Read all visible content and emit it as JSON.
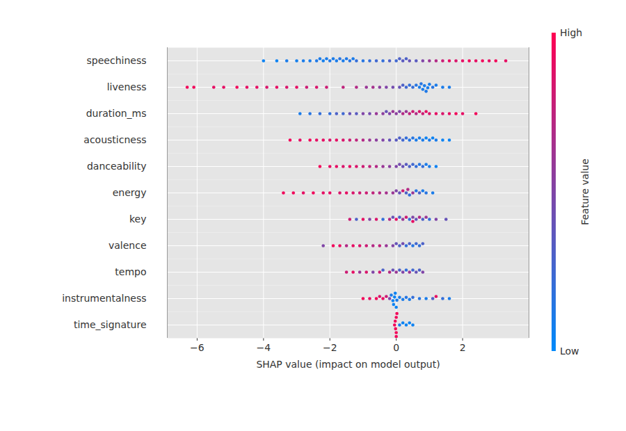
{
  "chart_data": {
    "type": "beeswarm",
    "x_label": "SHAP value (impact on model output)",
    "xlim": [
      -6.9,
      4.0
    ],
    "xticks": [
      -6,
      -4,
      -2,
      0,
      2
    ],
    "grid": true,
    "colorbar": {
      "label": "Feature value",
      "range": [
        0,
        1
      ],
      "colors": [
        "#008afb",
        "#ff0052"
      ],
      "ticks": [
        {
          "value": 0,
          "label": "Low"
        },
        {
          "value": 1,
          "label": "High"
        }
      ]
    },
    "features": [
      {
        "name": "speechiness",
        "points": [
          [
            -4.0,
            0.05
          ],
          [
            -3.6,
            0.05
          ],
          [
            -3.3,
            0.1
          ],
          [
            -3.0,
            0.08
          ],
          [
            -2.8,
            0.1
          ],
          [
            -2.6,
            0.1
          ],
          [
            -2.4,
            0.12
          ],
          [
            -2.3,
            0.1
          ],
          [
            -2.2,
            0.08
          ],
          [
            -2.1,
            0.1
          ],
          [
            -2.0,
            0.12
          ],
          [
            -1.9,
            0.1
          ],
          [
            -1.8,
            0.1
          ],
          [
            -1.7,
            0.15
          ],
          [
            -1.6,
            0.1
          ],
          [
            -1.5,
            0.12
          ],
          [
            -1.4,
            0.15
          ],
          [
            -1.3,
            0.1
          ],
          [
            -1.2,
            0.2
          ],
          [
            -1.0,
            0.15
          ],
          [
            -0.8,
            0.2
          ],
          [
            -0.6,
            0.25
          ],
          [
            -0.4,
            0.2
          ],
          [
            -0.2,
            0.3
          ],
          [
            0.0,
            0.25
          ],
          [
            0.1,
            0.3
          ],
          [
            0.2,
            0.35
          ],
          [
            0.3,
            0.3
          ],
          [
            0.4,
            0.4
          ],
          [
            0.6,
            0.35
          ],
          [
            0.8,
            0.5
          ],
          [
            1.0,
            0.6
          ],
          [
            1.2,
            0.7
          ],
          [
            1.4,
            0.8
          ],
          [
            1.6,
            0.9
          ],
          [
            1.8,
            0.85
          ],
          [
            2.0,
            0.9
          ],
          [
            2.2,
            0.95
          ],
          [
            2.4,
            0.9
          ],
          [
            2.6,
            0.95
          ],
          [
            2.8,
            0.9
          ],
          [
            3.0,
            0.95
          ],
          [
            3.3,
            0.9
          ]
        ]
      },
      {
        "name": "liveness",
        "points": [
          [
            -6.3,
            0.95
          ],
          [
            -6.1,
            0.95
          ],
          [
            -5.5,
            0.9
          ],
          [
            -5.2,
            0.9
          ],
          [
            -4.8,
            0.95
          ],
          [
            -4.5,
            0.9
          ],
          [
            -4.2,
            0.9
          ],
          [
            -3.9,
            0.85
          ],
          [
            -3.6,
            0.9
          ],
          [
            -3.3,
            0.85
          ],
          [
            -3.0,
            0.9
          ],
          [
            -2.7,
            0.8
          ],
          [
            -2.4,
            0.85
          ],
          [
            -2.1,
            0.8
          ],
          [
            -1.6,
            0.75
          ],
          [
            -1.2,
            0.7
          ],
          [
            -0.9,
            0.6
          ],
          [
            -0.7,
            0.65
          ],
          [
            -0.5,
            0.55
          ],
          [
            -0.3,
            0.5
          ],
          [
            -0.1,
            0.45
          ],
          [
            0.1,
            0.4
          ],
          [
            0.2,
            0.3
          ],
          [
            0.3,
            0.25
          ],
          [
            0.4,
            0.2
          ],
          [
            0.5,
            0.2
          ],
          [
            0.6,
            0.15
          ],
          [
            0.7,
            0.1
          ],
          [
            0.75,
            0.15
          ],
          [
            0.8,
            0.1
          ],
          [
            0.85,
            0.1
          ],
          [
            0.9,
            0.12
          ],
          [
            0.95,
            0.1
          ],
          [
            1.0,
            0.1
          ],
          [
            1.1,
            0.15
          ],
          [
            1.2,
            0.1
          ],
          [
            1.4,
            0.1
          ],
          [
            1.6,
            0.1
          ]
        ]
      },
      {
        "name": "duration_ms",
        "points": [
          [
            -2.9,
            0.1
          ],
          [
            -2.6,
            0.15
          ],
          [
            -2.3,
            0.2
          ],
          [
            -2.0,
            0.2
          ],
          [
            -1.8,
            0.3
          ],
          [
            -1.6,
            0.25
          ],
          [
            -1.4,
            0.4
          ],
          [
            -1.2,
            0.35
          ],
          [
            -1.0,
            0.5
          ],
          [
            -0.8,
            0.45
          ],
          [
            -0.6,
            0.6
          ],
          [
            -0.4,
            0.55
          ],
          [
            -0.3,
            0.4
          ],
          [
            -0.2,
            0.5
          ],
          [
            -0.1,
            0.6
          ],
          [
            0.0,
            0.55
          ],
          [
            0.1,
            0.5
          ],
          [
            0.2,
            0.7
          ],
          [
            0.3,
            0.6
          ],
          [
            0.4,
            0.75
          ],
          [
            0.5,
            0.8
          ],
          [
            0.6,
            0.7
          ],
          [
            0.7,
            0.85
          ],
          [
            0.8,
            0.8
          ],
          [
            0.9,
            0.9
          ],
          [
            1.0,
            0.85
          ],
          [
            1.2,
            0.9
          ],
          [
            1.4,
            0.85
          ],
          [
            1.6,
            0.9
          ],
          [
            1.8,
            0.95
          ],
          [
            2.0,
            0.9
          ],
          [
            2.4,
            0.95
          ]
        ]
      },
      {
        "name": "acousticness",
        "points": [
          [
            -3.2,
            0.95
          ],
          [
            -2.9,
            0.9
          ],
          [
            -2.6,
            0.95
          ],
          [
            -2.4,
            0.9
          ],
          [
            -2.2,
            0.9
          ],
          [
            -2.0,
            0.85
          ],
          [
            -1.8,
            0.9
          ],
          [
            -1.6,
            0.85
          ],
          [
            -1.4,
            0.8
          ],
          [
            -1.2,
            0.75
          ],
          [
            -1.0,
            0.7
          ],
          [
            -0.8,
            0.6
          ],
          [
            -0.6,
            0.55
          ],
          [
            -0.4,
            0.5
          ],
          [
            -0.2,
            0.4
          ],
          [
            0.0,
            0.35
          ],
          [
            0.1,
            0.3
          ],
          [
            0.2,
            0.25
          ],
          [
            0.3,
            0.2
          ],
          [
            0.4,
            0.15
          ],
          [
            0.5,
            0.15
          ],
          [
            0.6,
            0.1
          ],
          [
            0.7,
            0.1
          ],
          [
            0.8,
            0.1
          ],
          [
            0.9,
            0.05
          ],
          [
            1.0,
            0.1
          ],
          [
            1.1,
            0.05
          ],
          [
            1.2,
            0.1
          ],
          [
            1.4,
            0.05
          ],
          [
            1.6,
            0.05
          ]
        ]
      },
      {
        "name": "danceability",
        "points": [
          [
            -2.3,
            0.95
          ],
          [
            -2.0,
            0.9
          ],
          [
            -1.8,
            0.9
          ],
          [
            -1.6,
            0.85
          ],
          [
            -1.4,
            0.9
          ],
          [
            -1.2,
            0.85
          ],
          [
            -1.0,
            0.8
          ],
          [
            -0.8,
            0.75
          ],
          [
            -0.6,
            0.7
          ],
          [
            -0.4,
            0.6
          ],
          [
            -0.2,
            0.55
          ],
          [
            0.0,
            0.5
          ],
          [
            0.1,
            0.45
          ],
          [
            0.2,
            0.4
          ],
          [
            0.3,
            0.35
          ],
          [
            0.4,
            0.3
          ],
          [
            0.5,
            0.25
          ],
          [
            0.6,
            0.2
          ],
          [
            0.7,
            0.15
          ],
          [
            0.8,
            0.2
          ],
          [
            0.9,
            0.1
          ],
          [
            1.0,
            0.1
          ],
          [
            1.2,
            0.05
          ]
        ]
      },
      {
        "name": "energy",
        "points": [
          [
            -3.4,
            0.95
          ],
          [
            -3.1,
            0.95
          ],
          [
            -2.8,
            0.9
          ],
          [
            -2.5,
            0.95
          ],
          [
            -2.2,
            0.9
          ],
          [
            -2.0,
            0.9
          ],
          [
            -1.7,
            0.85
          ],
          [
            -1.5,
            0.9
          ],
          [
            -1.3,
            0.85
          ],
          [
            -1.1,
            0.8
          ],
          [
            -0.9,
            0.8
          ],
          [
            -0.7,
            0.75
          ],
          [
            -0.5,
            0.7
          ],
          [
            -0.3,
            0.65
          ],
          [
            -0.1,
            0.6
          ],
          [
            0.0,
            0.5
          ],
          [
            0.1,
            0.4
          ],
          [
            0.2,
            0.8
          ],
          [
            0.3,
            0.3
          ],
          [
            0.35,
            0.7
          ],
          [
            0.4,
            0.2
          ],
          [
            0.5,
            0.6
          ],
          [
            0.6,
            0.15
          ],
          [
            0.7,
            0.3
          ],
          [
            0.8,
            0.1
          ],
          [
            0.9,
            0.15
          ],
          [
            1.1,
            0.1
          ]
        ]
      },
      {
        "name": "key",
        "points": [
          [
            -1.4,
            0.8
          ],
          [
            -1.2,
            0.3
          ],
          [
            -1.0,
            0.9
          ],
          [
            -0.8,
            0.5
          ],
          [
            -0.6,
            0.85
          ],
          [
            -0.4,
            0.2
          ],
          [
            -0.2,
            0.7
          ],
          [
            -0.1,
            0.4
          ],
          [
            0.0,
            0.9
          ],
          [
            0.1,
            0.3
          ],
          [
            0.2,
            0.6
          ],
          [
            0.3,
            0.8
          ],
          [
            0.4,
            0.2
          ],
          [
            0.5,
            0.5
          ],
          [
            0.5,
            0.9
          ],
          [
            0.6,
            0.4
          ],
          [
            0.7,
            0.7
          ],
          [
            0.8,
            0.3
          ],
          [
            0.9,
            0.6
          ],
          [
            1.0,
            0.2
          ],
          [
            1.2,
            0.5
          ],
          [
            1.5,
            0.4
          ]
        ]
      },
      {
        "name": "valence",
        "points": [
          [
            -2.2,
            0.5
          ],
          [
            -1.9,
            0.95
          ],
          [
            -1.7,
            0.9
          ],
          [
            -1.5,
            0.7
          ],
          [
            -1.3,
            0.9
          ],
          [
            -1.1,
            0.85
          ],
          [
            -0.9,
            0.8
          ],
          [
            -0.7,
            0.7
          ],
          [
            -0.5,
            0.75
          ],
          [
            -0.3,
            0.6
          ],
          [
            -0.1,
            0.5
          ],
          [
            0.0,
            0.4
          ],
          [
            0.1,
            0.3
          ],
          [
            0.2,
            0.45
          ],
          [
            0.3,
            0.2
          ],
          [
            0.4,
            0.3
          ],
          [
            0.5,
            0.15
          ],
          [
            0.6,
            0.25
          ],
          [
            0.7,
            0.2
          ],
          [
            0.8,
            0.3
          ]
        ]
      },
      {
        "name": "tempo",
        "points": [
          [
            -1.5,
            0.8
          ],
          [
            -1.3,
            0.9
          ],
          [
            -1.1,
            0.6
          ],
          [
            -0.9,
            0.85
          ],
          [
            -0.7,
            0.5
          ],
          [
            -0.5,
            0.8
          ],
          [
            -0.4,
            0.3
          ],
          [
            -0.2,
            0.7
          ],
          [
            -0.1,
            0.4
          ],
          [
            0.0,
            0.6
          ],
          [
            0.1,
            0.3
          ],
          [
            0.2,
            0.5
          ],
          [
            0.3,
            0.2
          ],
          [
            0.4,
            0.6
          ],
          [
            0.5,
            0.25
          ],
          [
            0.6,
            0.4
          ],
          [
            0.7,
            0.3
          ],
          [
            0.8,
            0.5
          ]
        ]
      },
      {
        "name": "instrumentalness",
        "points": [
          [
            -1.0,
            0.95
          ],
          [
            -0.8,
            0.9
          ],
          [
            -0.6,
            0.95
          ],
          [
            -0.5,
            0.85
          ],
          [
            -0.4,
            0.9
          ],
          [
            -0.3,
            0.8
          ],
          [
            -0.2,
            0.5
          ],
          [
            -0.15,
            0.1
          ],
          [
            -0.1,
            0.05
          ],
          [
            -0.08,
            0.05
          ],
          [
            -0.05,
            0.05
          ],
          [
            -0.03,
            0.05
          ],
          [
            0.0,
            0.05
          ],
          [
            0.02,
            0.1
          ],
          [
            0.1,
            0.1
          ],
          [
            0.2,
            0.1
          ],
          [
            0.3,
            0.15
          ],
          [
            0.4,
            0.1
          ],
          [
            0.5,
            0.2
          ],
          [
            0.7,
            0.15
          ],
          [
            0.9,
            0.1
          ],
          [
            1.1,
            0.3
          ],
          [
            1.2,
            0.9
          ],
          [
            1.4,
            0.2
          ],
          [
            1.6,
            0.1
          ]
        ]
      },
      {
        "name": "time_signature",
        "points": [
          [
            -0.05,
            0.95
          ],
          [
            -0.03,
            0.95
          ],
          [
            -0.02,
            0.95
          ],
          [
            0.0,
            0.95
          ],
          [
            0.0,
            0.95
          ],
          [
            0.0,
            0.95
          ],
          [
            0.02,
            0.95
          ],
          [
            0.05,
            0.9
          ],
          [
            0.1,
            0.1
          ],
          [
            0.2,
            0.05
          ],
          [
            0.3,
            0.05
          ],
          [
            0.4,
            0.05
          ],
          [
            0.5,
            0.05
          ]
        ]
      }
    ]
  }
}
